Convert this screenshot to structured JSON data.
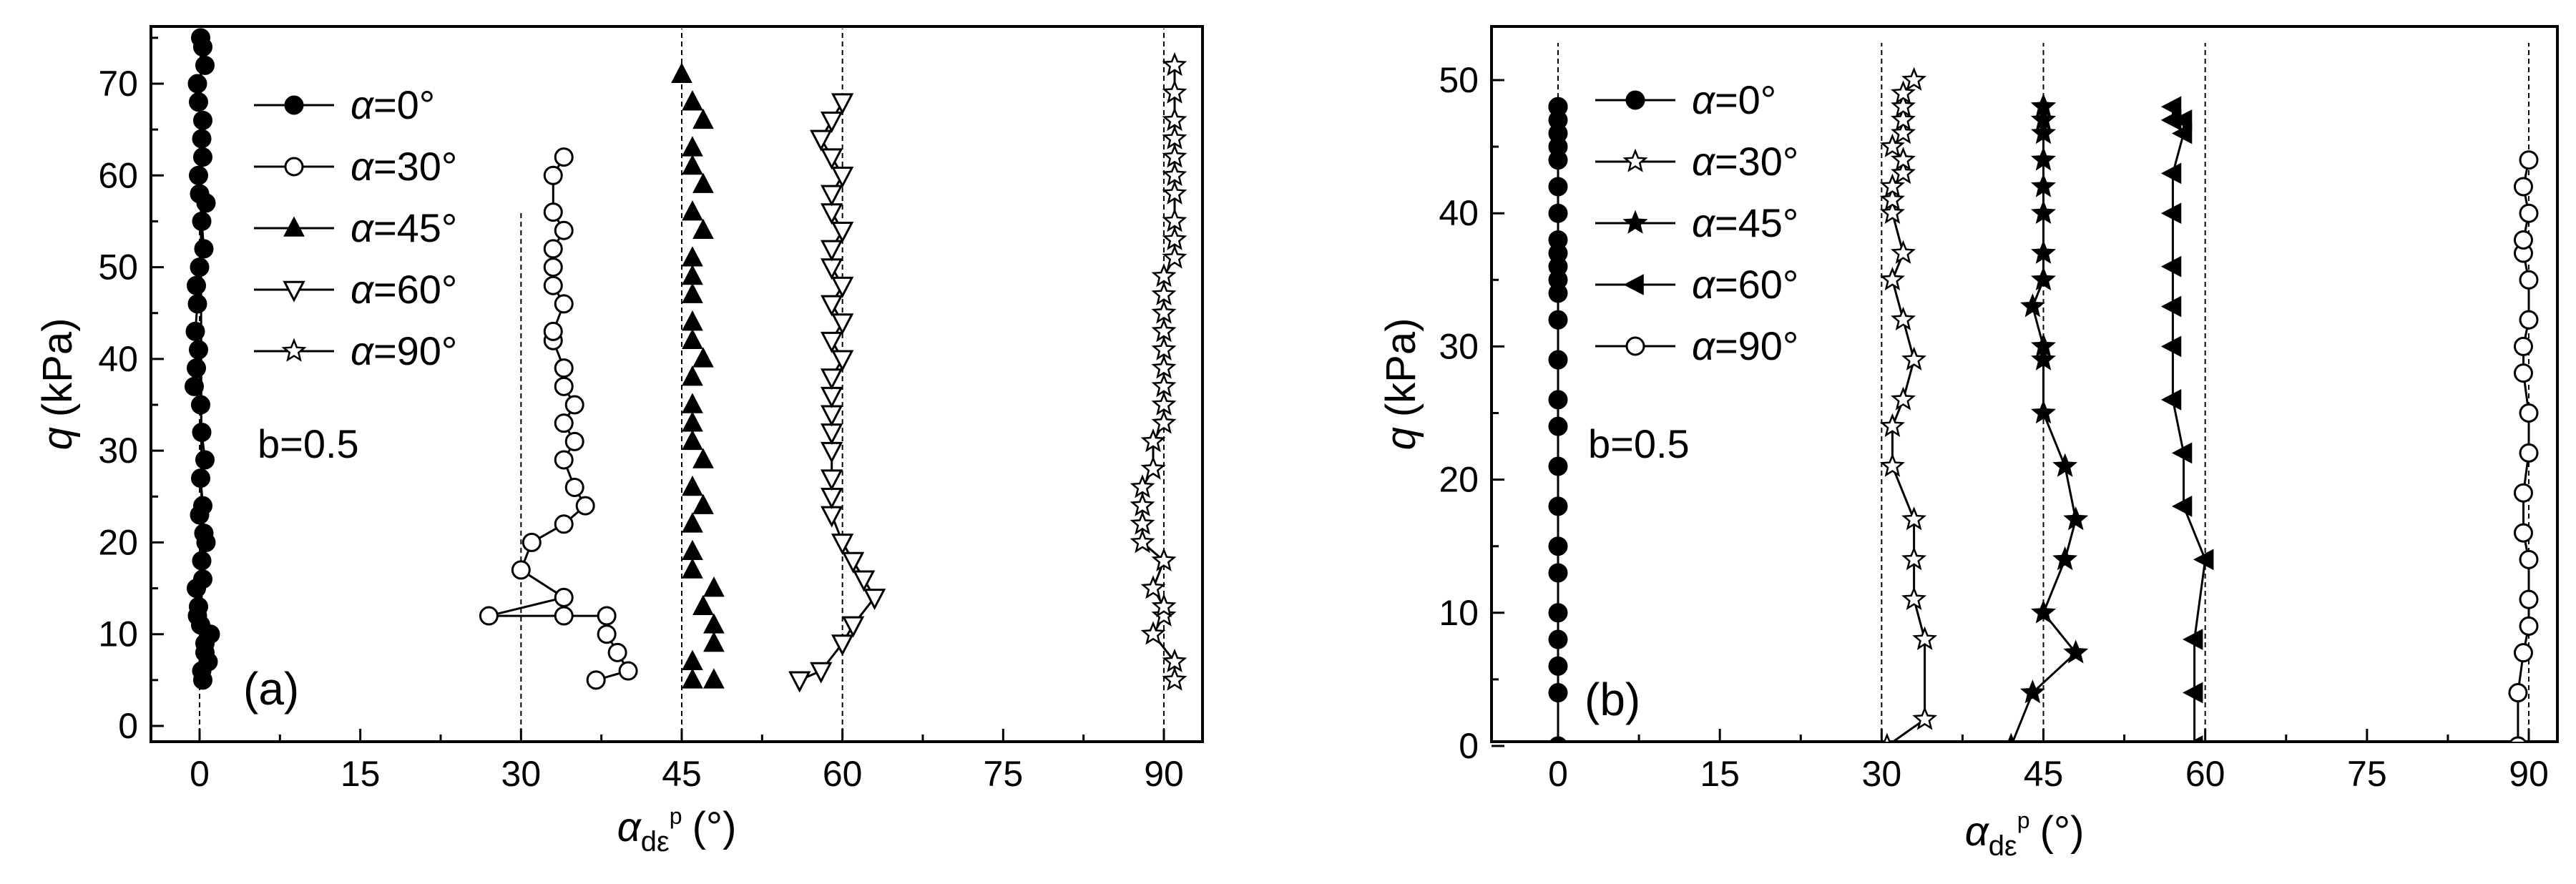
{
  "panels": [
    {
      "id": "a",
      "tag": "(a)",
      "xlabel": "α",
      "xlabel_sub": "dε",
      "xlabel_sup": "p",
      "xlabel_unit": "(°)",
      "ylabel_var": "q",
      "ylabel_unit": "(kPa)",
      "xticks": [
        "0",
        "15",
        "30",
        "45",
        "60",
        "75",
        "90"
      ],
      "yticks": [
        "0",
        "10",
        "20",
        "30",
        "40",
        "50",
        "60",
        "70"
      ],
      "note": "b=0.5",
      "legend": [
        "α=0°",
        "α=30°",
        "α=45°",
        "α=60°",
        "α=90°"
      ]
    },
    {
      "id": "b",
      "tag": "(b)",
      "xlabel": "α",
      "xlabel_sub": "dε",
      "xlabel_sup": "p",
      "xlabel_unit": "(°)",
      "ylabel_var": "q",
      "ylabel_unit": "(kPa)",
      "xticks": [
        "0",
        "15",
        "30",
        "45",
        "60",
        "75",
        "90"
      ],
      "yticks": [
        "0",
        "10",
        "20",
        "30",
        "40",
        "50"
      ],
      "note": "b=0.5",
      "legend": [
        "α=0°",
        "α=30°",
        "α=45°",
        "α=60°",
        "α=90°"
      ]
    }
  ],
  "chart_data": [
    {
      "type": "line",
      "panel": "a",
      "xlabel": "α_dε^p (°)",
      "ylabel": "q (kPa)",
      "xlim": [
        -5,
        95
      ],
      "ylim": [
        -1,
        78
      ],
      "reference_lines_x": [
        0,
        30,
        45,
        60,
        90
      ],
      "series": [
        {
          "name": "α=0°",
          "marker": "filled-circle",
          "connected": true,
          "x": [
            0.3,
            0.8,
            0.5,
            1.0,
            -0.2,
            -0.3,
            0.2,
            0.4,
            0.3,
            0.1,
            0.5,
            0.2,
            0.1,
            -0.5,
            -0.3,
            -0.1,
            -0.4,
            -0.2,
            -0.3,
            0.0,
            0.4,
            0.2,
            0.6,
            0.0,
            -0.1,
            0.3,
            0.2,
            0.3,
            -0.1,
            -0.2,
            0.5,
            0.3,
            0.1,
            0.2,
            0.5,
            0.1,
            -0.1,
            0.3,
            0.6,
            0.0
          ],
          "y": [
            5,
            7,
            9,
            10,
            12,
            15,
            18,
            21,
            24,
            27,
            29,
            32,
            35,
            37,
            39,
            41,
            43,
            46,
            48,
            50,
            52,
            55,
            57,
            58,
            60,
            62,
            64,
            66,
            68,
            70,
            72,
            74,
            75,
            6,
            8,
            11,
            13,
            16,
            20,
            23
          ]
        },
        {
          "name": "α=30°",
          "marker": "open-circle",
          "connected": true,
          "x": [
            37,
            40,
            39,
            38,
            38,
            34,
            27,
            34,
            30,
            31,
            34,
            36,
            35,
            34,
            35,
            34,
            35,
            34,
            34,
            33,
            33,
            34,
            33,
            33,
            33,
            34,
            33,
            33,
            34
          ],
          "y": [
            5,
            6,
            8,
            10,
            12,
            12,
            12,
            14,
            17,
            20,
            22,
            24,
            26,
            29,
            31,
            33,
            35,
            37,
            39,
            42,
            43,
            46,
            48,
            50,
            52,
            54,
            56,
            60,
            62
          ]
        },
        {
          "name": "α=45°",
          "marker": "filled-triangle-up",
          "connected": false,
          "x": [
            46,
            48,
            46,
            48,
            48,
            47,
            48,
            46,
            46,
            46,
            47,
            46,
            47,
            46,
            46,
            46,
            46,
            47,
            46,
            46,
            46,
            46,
            46,
            47,
            46,
            47,
            46,
            46,
            47,
            46,
            45
          ],
          "y": [
            5,
            5,
            7,
            9,
            11,
            13,
            15,
            17,
            19,
            22,
            24,
            26,
            29,
            31,
            33,
            35,
            38,
            40,
            42,
            44,
            47,
            49,
            51,
            54,
            56,
            59,
            61,
            63,
            66,
            68,
            71
          ]
        },
        {
          "name": "α=60°",
          "marker": "open-triangle-down",
          "connected": true,
          "x": [
            56,
            58,
            60,
            61,
            63,
            62,
            61,
            60,
            59,
            59,
            59,
            59,
            59,
            59,
            59,
            59,
            60,
            59,
            60,
            59,
            60,
            59,
            59,
            60,
            59,
            59,
            60,
            59,
            58,
            59,
            60
          ],
          "y": [
            5,
            6,
            9,
            11,
            14,
            16,
            18,
            20,
            23,
            25,
            27,
            30,
            32,
            34,
            36,
            38,
            40,
            42,
            44,
            46,
            48,
            50,
            52,
            54,
            56,
            58,
            60,
            62,
            64,
            66,
            68
          ]
        },
        {
          "name": "α=90°",
          "marker": "open-star",
          "connected": true,
          "x": [
            91,
            91,
            89,
            90,
            90,
            89,
            90,
            88,
            88,
            88,
            88,
            89,
            89,
            90,
            90,
            90,
            90,
            90,
            90,
            90,
            90,
            90,
            91,
            91,
            91,
            91,
            91,
            91,
            91,
            91,
            91,
            91
          ],
          "y": [
            5,
            7,
            10,
            12,
            13,
            15,
            18,
            20,
            22,
            24,
            26,
            28,
            31,
            33,
            35,
            37,
            39,
            41,
            43,
            45,
            47,
            49,
            51,
            53,
            55,
            58,
            60,
            62,
            64,
            66,
            69,
            72
          ]
        }
      ]
    },
    {
      "type": "line",
      "panel": "b",
      "xlabel": "α_dε^p (°)",
      "ylabel": "q (kPa)",
      "xlim": [
        -5,
        95
      ],
      "ylim": [
        -1,
        55
      ],
      "reference_lines_x": [
        0,
        30,
        45,
        60,
        90
      ],
      "series": [
        {
          "name": "α=0°",
          "marker": "filled-circle",
          "connected": true,
          "x": [
            0,
            0,
            0,
            0,
            0,
            0,
            0,
            0,
            0,
            0,
            0,
            0,
            0,
            0,
            0,
            0,
            0,
            0,
            0,
            0,
            0,
            0,
            0,
            0,
            0,
            0,
            0,
            0
          ],
          "y": [
            0,
            4,
            6,
            8,
            10,
            13,
            15,
            18,
            21,
            24,
            26,
            29,
            32,
            34,
            35,
            36,
            37,
            38,
            40,
            42,
            44,
            45,
            46,
            47,
            48,
            48,
            48,
            48
          ]
        },
        {
          "name": "α=30°",
          "marker": "open-star",
          "connected": true,
          "x": [
            30.5,
            34,
            34,
            33,
            33,
            33,
            31,
            31,
            32,
            33,
            32,
            31,
            32,
            31,
            31,
            31,
            32,
            32,
            31,
            32,
            32,
            32,
            32,
            33
          ],
          "y": [
            0,
            2,
            8,
            11,
            14,
            17,
            21,
            24,
            26,
            29,
            32,
            35,
            37,
            40,
            41,
            42,
            43,
            44,
            45,
            46,
            47,
            48,
            49,
            50
          ]
        },
        {
          "name": "α=45°",
          "marker": "filled-star",
          "connected": true,
          "x": [
            42,
            44,
            48,
            45,
            47,
            48,
            47,
            45,
            45,
            45,
            44,
            45,
            45,
            45,
            45,
            45,
            45,
            45,
            45,
            45,
            45,
            45
          ],
          "y": [
            0,
            4,
            7,
            10,
            14,
            17,
            21,
            25,
            29,
            30,
            33,
            35,
            37,
            40,
            42,
            44,
            46,
            47,
            47,
            48,
            48,
            48
          ]
        },
        {
          "name": "α=60°",
          "marker": "filled-triangle-left",
          "connected": true,
          "x": [
            59,
            59,
            59,
            60,
            58,
            58,
            57,
            57,
            57,
            57,
            57,
            57,
            58,
            58,
            57,
            57,
            57,
            57
          ],
          "y": [
            0,
            4,
            8,
            14,
            18,
            22,
            26,
            30,
            33,
            36,
            40,
            43,
            46,
            47,
            47,
            47,
            48,
            47
          ]
        },
        {
          "name": "α=90°",
          "marker": "open-circle",
          "connected": true,
          "x": [
            89,
            89,
            89.5,
            90,
            90,
            90,
            89.5,
            89.5,
            90,
            90,
            89.5,
            89.5,
            90,
            90,
            89.5,
            89.5,
            90,
            89.5,
            90
          ],
          "y": [
            0,
            4,
            7,
            9,
            11,
            14,
            16,
            19,
            22,
            25,
            28,
            30,
            32,
            35,
            37,
            38,
            40,
            42,
            44
          ]
        }
      ]
    }
  ]
}
